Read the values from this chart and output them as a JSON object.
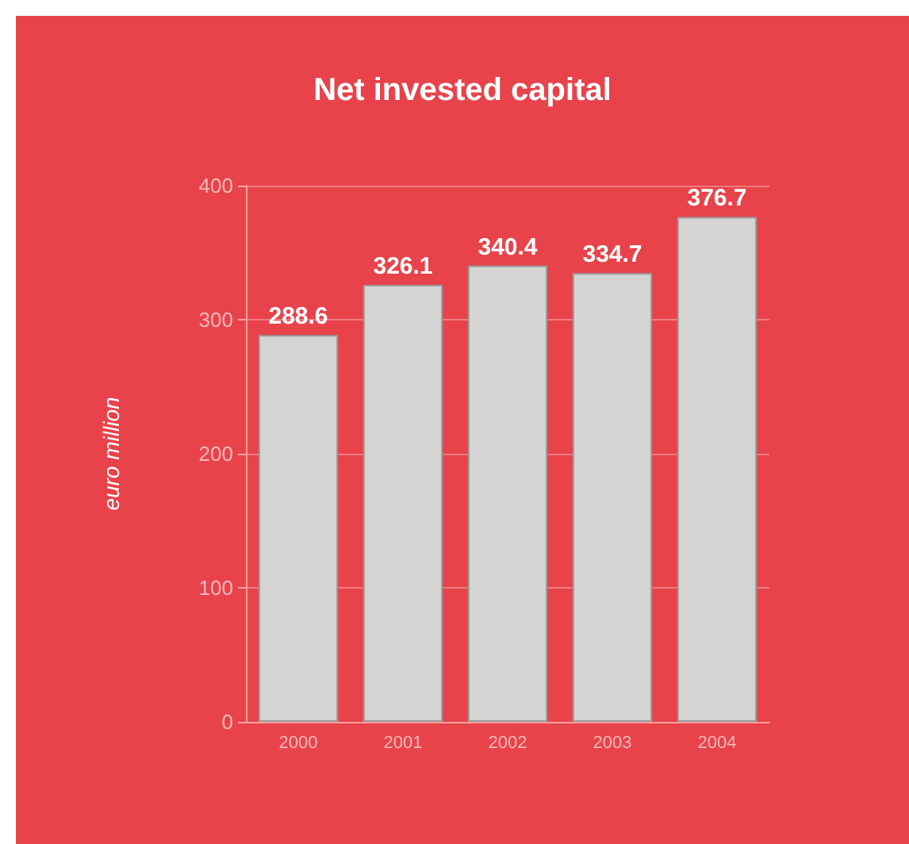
{
  "chart_data": {
    "type": "bar",
    "title": "Net invested capital",
    "ylabel": "euro million",
    "categories": [
      "2000",
      "2001",
      "2002",
      "2003",
      "2004"
    ],
    "values": [
      288.6,
      326.1,
      340.4,
      334.7,
      376.7
    ],
    "color": "#d4d4d2",
    "ylim": [
      0,
      400
    ],
    "yticks": [
      0,
      100,
      200,
      300,
      400
    ],
    "grid": "y",
    "data_labels": true
  }
}
